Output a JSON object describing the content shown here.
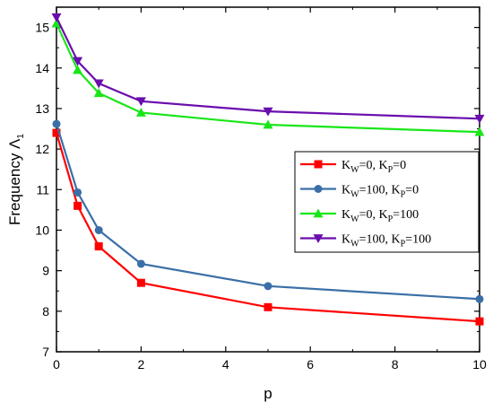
{
  "chart_data": {
    "type": "line",
    "xlabel": "p",
    "ylabel": "Frequency Λ",
    "ylabel_subscript": "1",
    "xlim": [
      0,
      10
    ],
    "ylim": [
      7,
      15.5
    ],
    "xticks": [
      0,
      2,
      4,
      6,
      8,
      10
    ],
    "yticks": [
      7,
      8,
      9,
      10,
      11,
      12,
      13,
      14,
      15
    ],
    "grid": false,
    "legend_position": "right",
    "x": [
      0,
      0.5,
      1,
      2,
      5,
      10
    ],
    "series": [
      {
        "name": "K_W=0, K_P=0",
        "legend": {
          "k1": "K",
          "s1": "W",
          "t1": "=0, ",
          "k2": "K",
          "s2": "P",
          "t2": "=0"
        },
        "marker": "square",
        "color": "#ff0000",
        "values": [
          12.4,
          10.6,
          9.6,
          8.7,
          8.1,
          7.75
        ]
      },
      {
        "name": "K_W=100, K_P=0",
        "legend": {
          "k1": "K",
          "s1": "W",
          "t1": "=100, ",
          "k2": "K",
          "s2": "P",
          "t2": "=0"
        },
        "marker": "circle",
        "color": "#3b6fa7",
        "values": [
          12.62,
          10.93,
          10.0,
          9.17,
          8.62,
          8.3
        ]
      },
      {
        "name": "K_W=0, K_P=100",
        "legend": {
          "k1": "K",
          "s1": "W",
          "t1": "=0, ",
          "k2": "K",
          "s2": "P",
          "t2": "=100"
        },
        "marker": "triangle-up",
        "color": "#19e619",
        "values": [
          15.1,
          13.95,
          13.38,
          12.9,
          12.6,
          12.42
        ]
      },
      {
        "name": "K_W=100, K_P=100",
        "legend": {
          "k1": "K",
          "s1": "W",
          "t1": "=100, ",
          "k2": "K",
          "s2": "P",
          "t2": "=100"
        },
        "marker": "triangle-down",
        "color": "#6a0dad",
        "values": [
          15.25,
          14.17,
          13.62,
          13.18,
          12.93,
          12.75
        ]
      }
    ]
  }
}
